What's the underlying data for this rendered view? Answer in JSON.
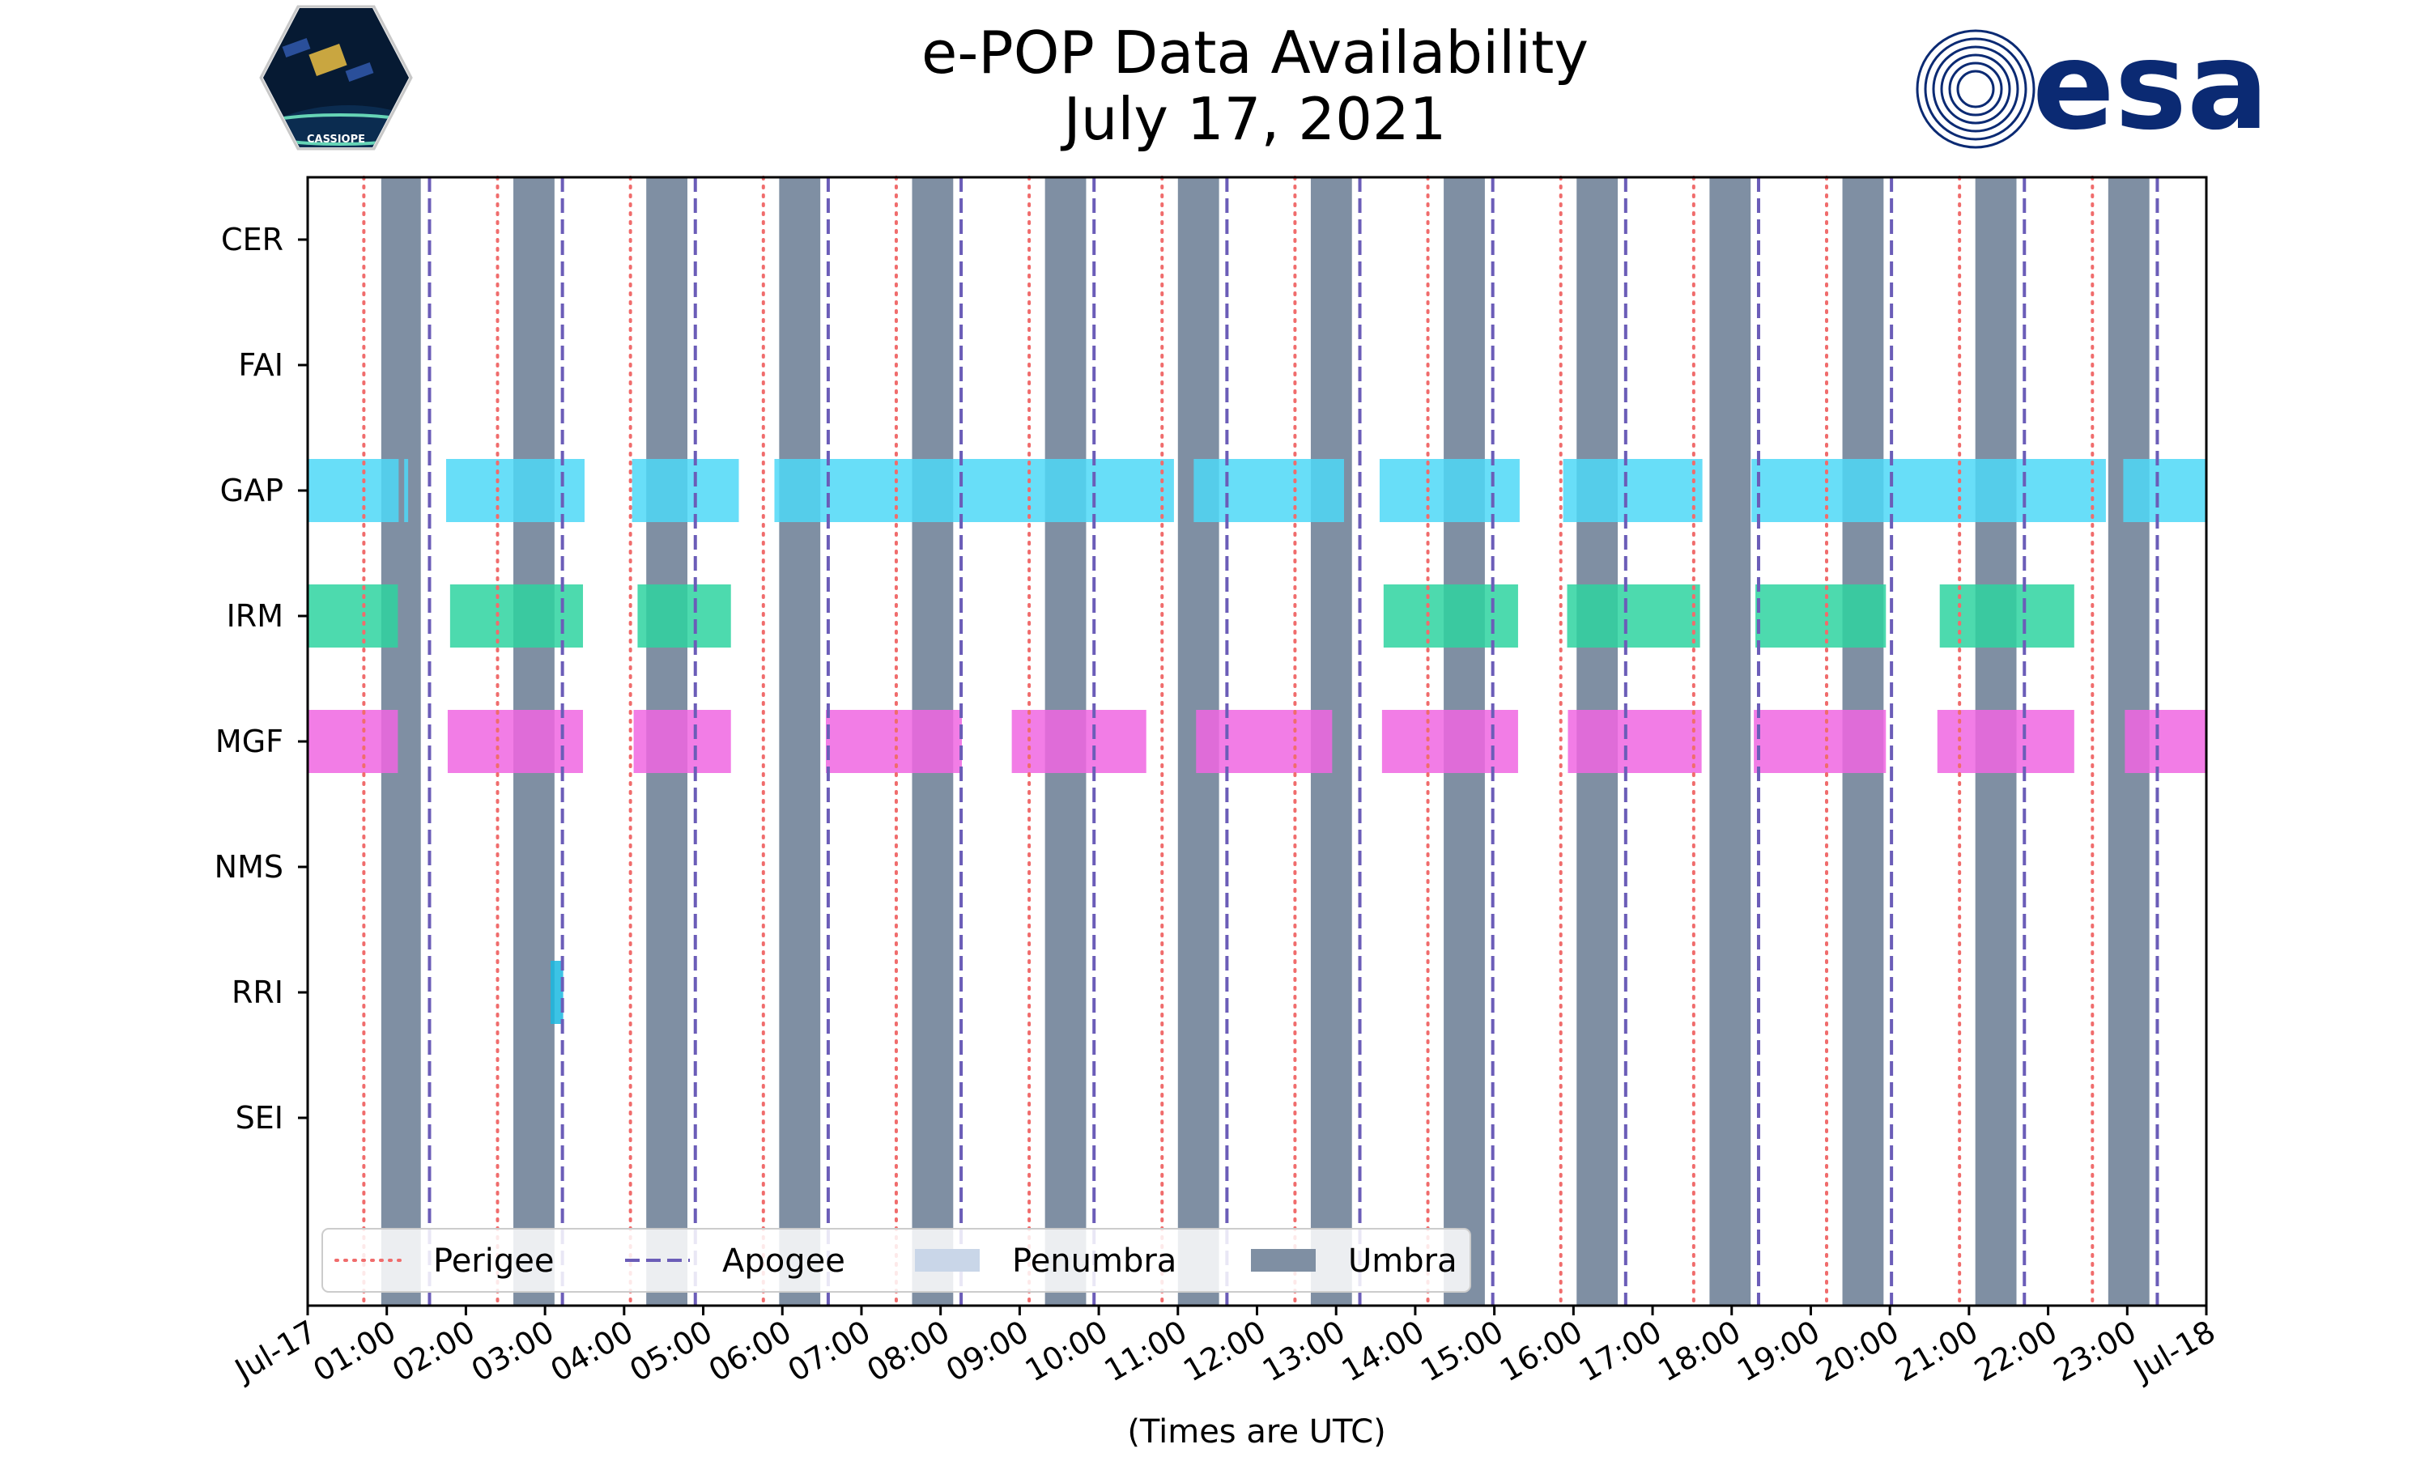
{
  "chart_data": {
    "type": "timeline",
    "title": [
      "e-POP Data Availability",
      "July 17, 2021"
    ],
    "xlabel": "(Times are UTC)",
    "x_unit": "hours since 2021-07-17 00:00 UTC",
    "xlim": [
      0,
      24
    ],
    "x_ticks": [
      {
        "value": 0,
        "label": "Jul-17"
      },
      {
        "value": 1,
        "label": "01:00"
      },
      {
        "value": 2,
        "label": "02:00"
      },
      {
        "value": 3,
        "label": "03:00"
      },
      {
        "value": 4,
        "label": "04:00"
      },
      {
        "value": 5,
        "label": "05:00"
      },
      {
        "value": 6,
        "label": "06:00"
      },
      {
        "value": 7,
        "label": "07:00"
      },
      {
        "value": 8,
        "label": "08:00"
      },
      {
        "value": 9,
        "label": "09:00"
      },
      {
        "value": 10,
        "label": "10:00"
      },
      {
        "value": 11,
        "label": "11:00"
      },
      {
        "value": 12,
        "label": "12:00"
      },
      {
        "value": 13,
        "label": "13:00"
      },
      {
        "value": 14,
        "label": "14:00"
      },
      {
        "value": 15,
        "label": "15:00"
      },
      {
        "value": 16,
        "label": "16:00"
      },
      {
        "value": 17,
        "label": "17:00"
      },
      {
        "value": 18,
        "label": "18:00"
      },
      {
        "value": 19,
        "label": "19:00"
      },
      {
        "value": 20,
        "label": "20:00"
      },
      {
        "value": 21,
        "label": "21:00"
      },
      {
        "value": 22,
        "label": "22:00"
      },
      {
        "value": 23,
        "label": "23:00"
      },
      {
        "value": 24,
        "label": "Jul-18"
      }
    ],
    "instruments": [
      "CER",
      "FAI",
      "GAP",
      "IRM",
      "MGF",
      "NMS",
      "RRI",
      "SEI"
    ],
    "colors": {
      "GAP": "#4dd8f7",
      "IRM": "#2ed3a0",
      "MGF": "#f066e2",
      "RRI": "#1ab8e0",
      "umbra": "#7f8fa3",
      "penumbra": "#c9d6e8",
      "perigee": "#f06c6c",
      "apogee": "#6b5db8"
    },
    "availability": {
      "CER": [],
      "FAI": [],
      "GAP": [
        [
          0.0,
          1.15
        ],
        [
          1.22,
          1.27
        ],
        [
          1.75,
          3.5
        ],
        [
          4.1,
          5.45
        ],
        [
          5.9,
          10.95
        ],
        [
          11.2,
          13.1
        ],
        [
          13.55,
          15.32
        ],
        [
          15.87,
          17.63
        ],
        [
          18.25,
          22.73
        ],
        [
          22.95,
          24.0
        ]
      ],
      "IRM": [
        [
          0.0,
          1.14
        ],
        [
          1.8,
          3.48
        ],
        [
          4.17,
          5.35
        ],
        [
          13.6,
          15.3
        ],
        [
          15.92,
          17.6
        ],
        [
          18.3,
          19.95
        ],
        [
          20.63,
          22.33
        ]
      ],
      "MGF": [
        [
          0.0,
          1.14
        ],
        [
          1.77,
          3.48
        ],
        [
          4.12,
          5.35
        ],
        [
          6.55,
          8.27
        ],
        [
          8.9,
          10.6
        ],
        [
          11.23,
          12.95
        ],
        [
          13.58,
          15.3
        ],
        [
          15.93,
          17.62
        ],
        [
          18.28,
          19.95
        ],
        [
          20.6,
          22.33
        ],
        [
          22.97,
          24.0
        ]
      ],
      "NMS": [],
      "RRI": [
        [
          3.07,
          3.23
        ]
      ],
      "SEI": []
    },
    "umbra": [
      [
        0.93,
        1.43
      ],
      [
        2.6,
        3.12
      ],
      [
        4.28,
        4.8
      ],
      [
        5.96,
        6.48
      ],
      [
        7.64,
        8.16
      ],
      [
        9.32,
        9.84
      ],
      [
        11.0,
        11.52
      ],
      [
        12.68,
        13.2
      ],
      [
        14.36,
        14.88
      ],
      [
        16.04,
        16.56
      ],
      [
        17.72,
        18.24
      ],
      [
        19.4,
        19.92
      ],
      [
        21.08,
        21.6
      ],
      [
        22.76,
        23.28
      ]
    ],
    "perigee": [
      0.71,
      2.4,
      4.08,
      5.76,
      7.44,
      9.12,
      10.8,
      12.48,
      14.16,
      15.84,
      17.52,
      19.2,
      20.88,
      22.56
    ],
    "apogee": [
      1.54,
      3.22,
      4.9,
      6.58,
      8.26,
      9.94,
      11.62,
      13.3,
      14.98,
      16.66,
      18.34,
      20.02,
      21.7,
      23.38
    ],
    "legend": {
      "position": "lower-left",
      "items": [
        {
          "key": "perigee",
          "label": "Perigee"
        },
        {
          "key": "apogee",
          "label": "Apogee"
        },
        {
          "key": "penumbra",
          "label": "Penumbra"
        },
        {
          "key": "umbra",
          "label": "Umbra"
        }
      ]
    }
  },
  "logos": {
    "mission": "CASSIOPE",
    "agency": "esa"
  }
}
